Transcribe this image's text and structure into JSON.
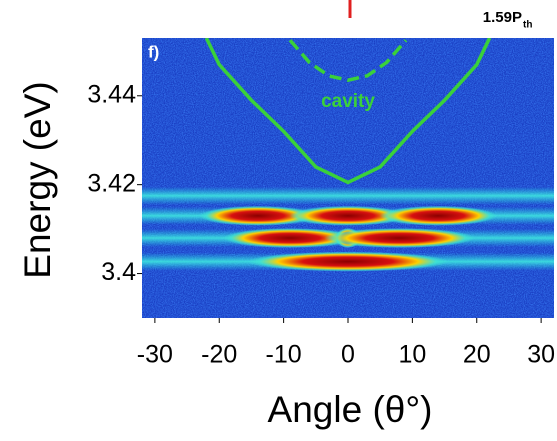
{
  "chart_data": {
    "type": "heatmap",
    "title": "1.59P",
    "title_subscript": "th",
    "panel_label": "f)",
    "xlabel": "Angle (θ°)",
    "ylabel": "Energy (eV)",
    "xlim": [
      -32,
      32
    ],
    "ylim": [
      3.39,
      3.453
    ],
    "xticks": [
      -30,
      -20,
      -10,
      0,
      10,
      20,
      30
    ],
    "yticks": [
      3.4,
      3.42,
      3.44
    ],
    "lines": [
      {
        "color": "#3ad13a",
        "dashed": false,
        "x": [
          -22,
          -20,
          -15,
          -10,
          -5,
          0,
          5,
          10,
          15,
          20,
          22
        ],
        "values": [
          3.453,
          3.447,
          3.439,
          3.432,
          3.424,
          3.4205,
          3.424,
          3.432,
          3.439,
          3.447,
          3.453
        ]
      },
      {
        "name": "cavity",
        "color": "#3ad13a",
        "dashed": true,
        "x": [
          -9,
          -6,
          -3,
          0,
          3,
          6,
          9
        ],
        "values": [
          3.4525,
          3.4475,
          3.4445,
          3.4435,
          3.4445,
          3.4475,
          3.4525
        ]
      }
    ],
    "bands": {
      "values": [
        3.4175,
        3.413,
        3.408,
        3.4027
      ]
    },
    "spots": {
      "x": [
        -14,
        0,
        14,
        -9,
        0,
        8,
        0
      ],
      "values": [
        3.413,
        3.413,
        3.413,
        3.408,
        3.408,
        3.408,
        3.4027
      ],
      "widths": [
        7,
        7,
        7,
        8,
        1.5,
        9,
        12
      ]
    }
  }
}
